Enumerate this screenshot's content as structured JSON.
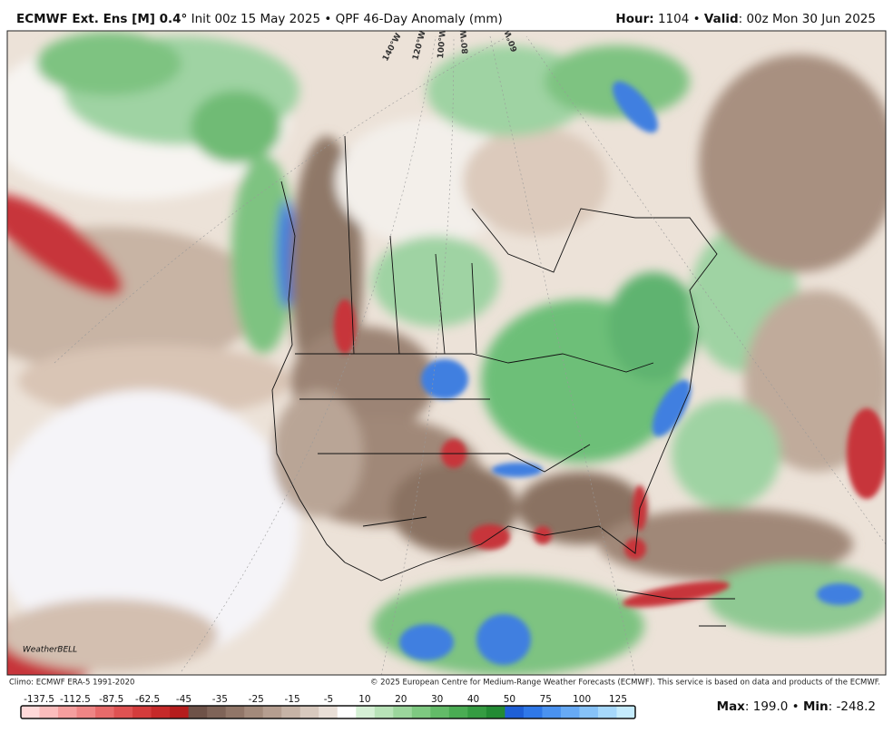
{
  "header": {
    "left": [
      {
        "text": "ECMWF Ext. Ens [M] 0.4°",
        "bold": true
      },
      {
        "text": " Init 00z 15 May 2025 • QPF 46-Day Anomaly (mm)",
        "bold": false
      }
    ],
    "right": [
      {
        "text": "Hour:",
        "bold": true
      },
      {
        "text": " 1104 • ",
        "bold": false
      },
      {
        "text": "Valid",
        "bold": true
      },
      {
        "text": ": 00z Mon 30 Jun 2025",
        "bold": false
      }
    ]
  },
  "map": {
    "longitude_labels": [
      "140°W",
      "120°W",
      "100°W",
      "80°W",
      "60°W"
    ],
    "watermark": "WeatherBELL"
  },
  "footer": {
    "climo": "Climo: ECMWF ERA-5 1991-2020",
    "copyright": "© 2025 European Centre for Medium-Range Weather Forecasts (ECMWF). This service is based on data and products of the ECMWF."
  },
  "colorbar": {
    "labels": [
      -137.5,
      -112.5,
      -87.5,
      -62.5,
      -45,
      -35,
      -25,
      -15,
      -5,
      10,
      20,
      30,
      40,
      50,
      75,
      100,
      125
    ],
    "colors": [
      "#ffd9d9",
      "#fbbcbc",
      "#f59e9e",
      "#ef8585",
      "#e86a6a",
      "#df5252",
      "#d43c3c",
      "#c62a2a",
      "#b51d1d",
      "#6e5248",
      "#7f6458",
      "#917668",
      "#a38a7b",
      "#b59e90",
      "#c6b3a6",
      "#d8c9be",
      "#e9dfd7",
      "#ffffff",
      "#d5f0d5",
      "#b8e3b8",
      "#9bd69c",
      "#7ec981",
      "#63bb68",
      "#4aac53",
      "#359c42",
      "#238b34",
      "#1e5fd6",
      "#2f78e8",
      "#4a92f0",
      "#67aaf5",
      "#86c2f8",
      "#a6d8fb",
      "#c4ebfd"
    ]
  },
  "stats": [
    {
      "text": "Max",
      "bold": true
    },
    {
      "text": ": 199.0 • ",
      "bold": false
    },
    {
      "text": "Min",
      "bold": true
    },
    {
      "text": ": -248.2",
      "bold": false
    }
  ]
}
